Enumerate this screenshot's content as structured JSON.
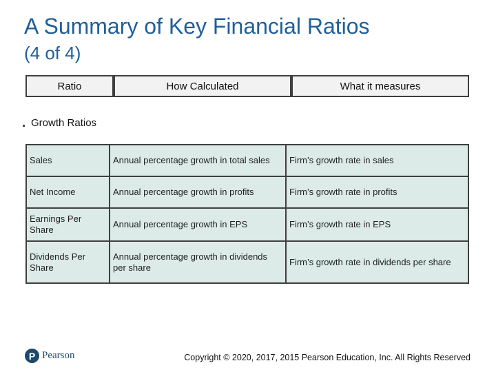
{
  "title": "A Summary of Key Financial Ratios",
  "subtitle": "(4 of 4)",
  "header": {
    "col1": "Ratio",
    "col2": "How Calculated",
    "col3": "What it measures"
  },
  "section_label": "Growth Ratios",
  "rows": [
    {
      "ratio": "Sales",
      "calc": "Annual percentage growth in total sales",
      "measures": "Firm’s growth rate in sales"
    },
    {
      "ratio": "Net Income",
      "calc": "Annual percentage growth in profits",
      "measures": "Firm’s growth rate in profits"
    },
    {
      "ratio": "Earnings Per Share",
      "calc": "Annual percentage growth in EPS",
      "measures": "Firm’s growth rate in EPS"
    },
    {
      "ratio": "Dividends Per Share",
      "calc": "Annual percentage growth in dividends per share",
      "measures": "Firm’s growth rate in dividends per share"
    }
  ],
  "footer": {
    "logo_mark": "P",
    "logo_text": "Pearson",
    "copyright": "Copyright © 2020, 2017, 2015 Pearson Education, Inc. All Rights Reserved"
  },
  "colors": {
    "title": "#1f5f9a",
    "cell_bg": "#dcebe7",
    "border": "#3f3f3f"
  }
}
